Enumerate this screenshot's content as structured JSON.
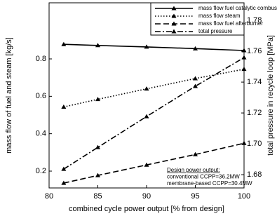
{
  "chart_data": {
    "type": "line",
    "x_label": "combined cycle power output [% from design]",
    "y_label": "mass flow of fuel and steam [kg/s]",
    "y2_label": "total pressure in recycle loop [MPa]",
    "x": [
      81.5,
      85,
      90,
      95,
      100
    ],
    "xlim": [
      80,
      100
    ],
    "xticks": [
      80,
      85,
      90,
      95,
      100
    ],
    "ylim": [
      0.11,
      1.1
    ],
    "yticks": [
      0.2,
      0.4,
      0.6,
      0.8
    ],
    "y2lim": [
      1.6714,
      1.7914
    ],
    "y2ticks": [
      1.68,
      {
        "value": 1.7,
        "label": "1.70"
      },
      1.72,
      1.74,
      1.76,
      1.78
    ],
    "legend": "top-right",
    "series": [
      {
        "name": "mass flow fuel catalytic combustor",
        "color": "#000000",
        "dash": "solid",
        "values": [
          0.878,
          0.872,
          0.864,
          0.855,
          0.845
        ]
      },
      {
        "name": "mass flow steam",
        "color": "#000000",
        "dash": "dotted",
        "values": [
          0.543,
          0.584,
          0.64,
          0.695,
          0.745
        ]
      },
      {
        "name": "mass flow fuel afterburner",
        "color": "#000000",
        "dash": "dashed",
        "values": [
          0.136,
          0.177,
          0.233,
          0.289,
          0.349
        ]
      },
      {
        "name": "total pressure",
        "color": "#000000",
        "dash": "dashdot",
        "axis": "y2",
        "values": [
          1.6836,
          1.6977,
          1.7177,
          1.7373,
          1.7559
        ]
      }
    ],
    "annotations": [
      "Design power output:",
      "conventional CCPP=36.2MW",
      "membrane-based CCPP=30.4MW"
    ]
  }
}
